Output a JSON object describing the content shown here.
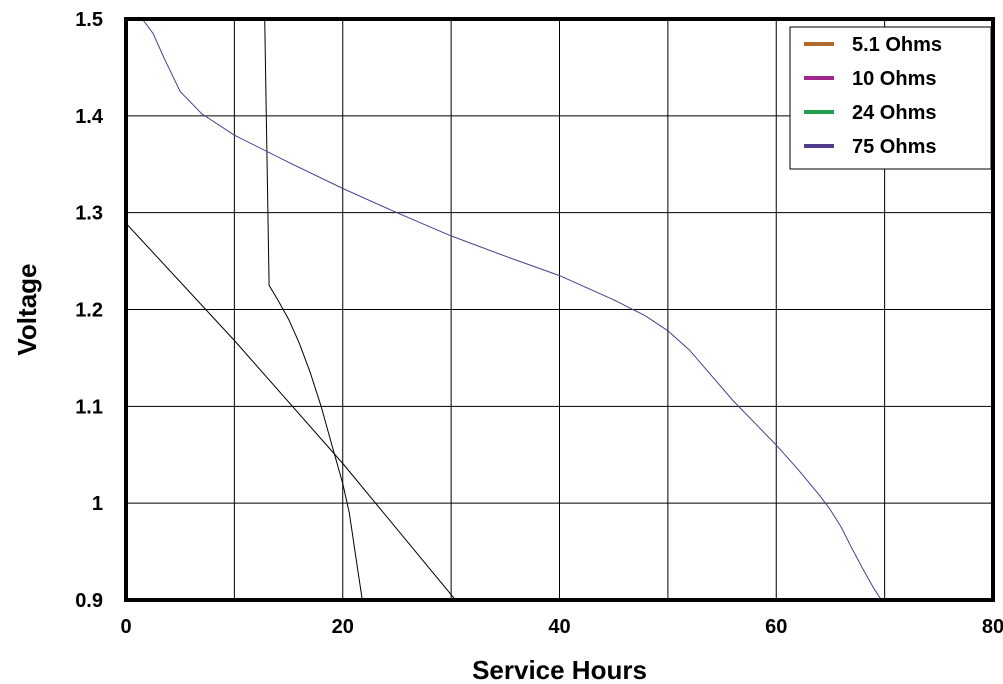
{
  "chart_data": {
    "type": "line",
    "xlabel": "Service Hours",
    "ylabel": "Voltage",
    "xlim": [
      0,
      80
    ],
    "ylim": [
      0.9,
      1.5
    ],
    "x_ticks": [
      "0",
      "20",
      "40",
      "60",
      "80"
    ],
    "y_ticks": [
      "0.9",
      "1",
      "1.1",
      "1.2",
      "1.3",
      "1.4",
      "1.5"
    ],
    "grid": true,
    "legend_position": "top-right",
    "series": [
      {
        "name": "5.1 Ohms",
        "color": "#b06a30",
        "x": [
          -11.4,
          0,
          10,
          20,
          30.4
        ],
        "y": [
          1.5,
          1.289,
          1.168,
          1.041,
          0.9
        ]
      },
      {
        "name": "10 Ohms",
        "color": "#a0288c",
        "x": [
          12.8,
          13.2,
          14,
          15,
          16,
          17,
          18,
          19,
          20,
          20.6,
          21.4,
          21.8
        ],
        "y": [
          1.5,
          1.225,
          1.21,
          1.19,
          1.165,
          1.135,
          1.1,
          1.06,
          1.02,
          0.99,
          0.93,
          0.9
        ]
      },
      {
        "name": "24 Ohms",
        "color": "#1ea050",
        "x": [],
        "y": []
      },
      {
        "name": "75 Ohms",
        "color": "#503c8c",
        "x": [
          1.5,
          2.5,
          3.5,
          5,
          7,
          10,
          15,
          20,
          25,
          30,
          35,
          40,
          45,
          48,
          50,
          52,
          54,
          56,
          58,
          60,
          62,
          64,
          65,
          66,
          67,
          68,
          69,
          70
        ],
        "y": [
          1.5,
          1.485,
          1.46,
          1.425,
          1.402,
          1.38,
          1.352,
          1.325,
          1.3,
          1.276,
          1.255,
          1.235,
          1.21,
          1.193,
          1.178,
          1.158,
          1.132,
          1.106,
          1.083,
          1.06,
          1.035,
          1.008,
          0.993,
          0.975,
          0.953,
          0.932,
          0.912,
          0.895
        ]
      }
    ]
  }
}
